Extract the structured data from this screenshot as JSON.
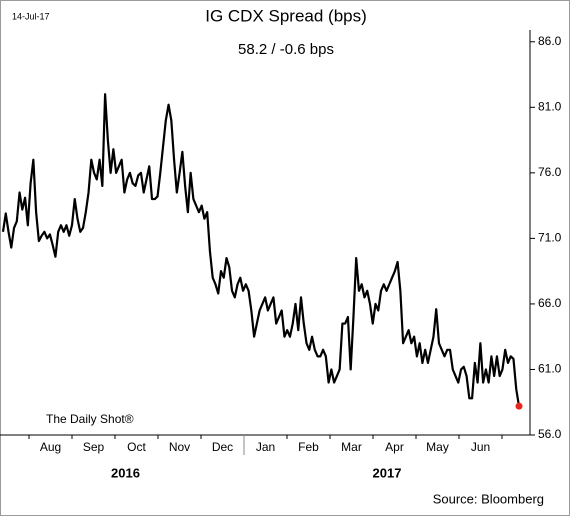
{
  "chart_data": {
    "type": "line",
    "title": "IG CDX Spread (bps)",
    "subtitle": "58.2  /  -0.6 bps",
    "date_stamp": "14-Jul-17",
    "watermark": "The Daily Shot®",
    "source": "Source: Bloomberg",
    "months": [
      "Aug",
      "Sep",
      "Oct",
      "Nov",
      "Dec",
      "Jan",
      "Feb",
      "Mar",
      "Apr",
      "May",
      "Jun"
    ],
    "years": [
      "2016",
      "2017"
    ],
    "ylim": [
      56,
      88.5
    ],
    "yticks": [
      {
        "value": 86,
        "label": "86.0"
      },
      {
        "value": 81,
        "label": "81.0"
      },
      {
        "value": 76,
        "label": "76.0"
      },
      {
        "value": 71,
        "label": "71.0"
      },
      {
        "value": 66,
        "label": "66.0"
      },
      {
        "value": 61,
        "label": "61.0"
      },
      {
        "value": 56,
        "label": "56.0"
      }
    ],
    "y_axis_side": "right",
    "grid": false,
    "last_marker_color": "#e8251f",
    "series": [
      {
        "name": "IG CDX Spread (bps)",
        "color": "#000000",
        "values": [
          71.5,
          72.9,
          71.5,
          70.3,
          71.8,
          72.3,
          74.5,
          73.2,
          74.1,
          72.0,
          75.2,
          77.0,
          73.0,
          70.8,
          71.2,
          71.5,
          71.0,
          71.3,
          70.5,
          69.6,
          71.5,
          72.0,
          71.5,
          72.0,
          71.2,
          72.0,
          74.0,
          72.5,
          71.5,
          71.8,
          73.0,
          74.5,
          77.0,
          76.0,
          75.5,
          77.0,
          75.0,
          82.0,
          78.5,
          76.0,
          77.8,
          76.0,
          76.5,
          77.0,
          74.5,
          75.5,
          76.0,
          75.2,
          75.0,
          75.8,
          76.0,
          74.5,
          75.5,
          76.5,
          74.0,
          74.0,
          74.2,
          76.0,
          78.0,
          80.0,
          81.2,
          80.0,
          77.0,
          74.5,
          76.0,
          77.6,
          75.0,
          73.0,
          76.0,
          74.0,
          73.5,
          73.0,
          73.5,
          72.5,
          73.0,
          70.0,
          68.0,
          67.5,
          66.8,
          68.5,
          68.0,
          69.5,
          68.8,
          67.0,
          66.5,
          67.5,
          68.0,
          67.0,
          67.5,
          67.0,
          65.5,
          63.5,
          64.5,
          65.5,
          66.0,
          66.5,
          65.5,
          66.0,
          66.5,
          64.5,
          65.0,
          65.5,
          63.5,
          64.0,
          63.5,
          64.5,
          66.0,
          64.0,
          66.5,
          64.5,
          63.0,
          62.5,
          63.5,
          62.5,
          62.0,
          62.0,
          62.5,
          62.0,
          60.0,
          61.0,
          60.0,
          60.5,
          61.0,
          64.5,
          64.5,
          65.0,
          61.0,
          65.0,
          69.5,
          67.0,
          67.5,
          66.5,
          67.0,
          66.0,
          64.5,
          66.0,
          65.5,
          67.0,
          67.5,
          67.0,
          67.5,
          68.0,
          68.5,
          69.2,
          67.0,
          63.0,
          63.5,
          64.0,
          63.0,
          63.5,
          62.0,
          63.0,
          61.5,
          62.5,
          61.5,
          62.5,
          63.5,
          65.6,
          63.0,
          62.5,
          62.0,
          62.5,
          62.5,
          61.0,
          60.5,
          60.0,
          61.0,
          61.2,
          60.5,
          58.8,
          58.8,
          61.5,
          60.0,
          63.0,
          60.0,
          61.0,
          60.0,
          62.0,
          60.5,
          62.0,
          60.5,
          61.0,
          62.5,
          61.5,
          62.0,
          61.8,
          59.5,
          58.2
        ]
      }
    ]
  }
}
